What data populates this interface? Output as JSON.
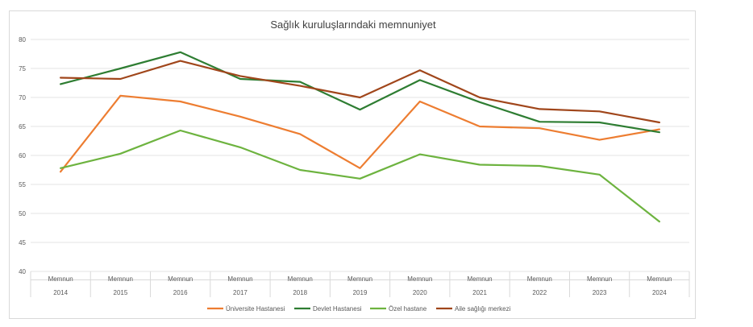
{
  "chart_data": {
    "type": "line",
    "title": "Sağlık kuruluşlarındaki memnuniyet",
    "categories": [
      {
        "top": "Memnun",
        "bottom": "2014"
      },
      {
        "top": "Memnun",
        "bottom": "2015"
      },
      {
        "top": "Memnun",
        "bottom": "2016"
      },
      {
        "top": "Memnun",
        "bottom": "2017"
      },
      {
        "top": "Memnun",
        "bottom": "2018"
      },
      {
        "top": "Memnun",
        "bottom": "2019"
      },
      {
        "top": "Memnun",
        "bottom": "2020"
      },
      {
        "top": "Memnun",
        "bottom": "2021"
      },
      {
        "top": "Memnun",
        "bottom": "2022"
      },
      {
        "top": "Memnun",
        "bottom": "2023"
      },
      {
        "top": "Memnun",
        "bottom": "2024"
      }
    ],
    "ylim": [
      40,
      80
    ],
    "yticks": [
      40,
      45,
      50,
      55,
      60,
      65,
      70,
      75,
      80
    ],
    "grid": true,
    "legend_position": "bottom",
    "series": [
      {
        "name": "Üniversite Hastanesi",
        "color": "#ED7D31",
        "values": [
          57.2,
          70.3,
          69.3,
          66.7,
          63.7,
          57.8,
          69.3,
          65.0,
          64.7,
          62.7,
          64.5
        ]
      },
      {
        "name": "Devlet Hastanesi",
        "color": "#2E7D32",
        "values": [
          72.3,
          75.0,
          77.8,
          73.2,
          72.7,
          67.9,
          73.0,
          69.2,
          65.8,
          65.7,
          64.0
        ]
      },
      {
        "name": "Özel hastane",
        "color": "#6DB33F",
        "values": [
          57.8,
          60.3,
          64.3,
          61.4,
          57.5,
          56.0,
          60.2,
          58.4,
          58.2,
          56.7,
          48.6
        ]
      },
      {
        "name": "Aile sağlığı merkezi",
        "color": "#A0461B",
        "values": [
          73.4,
          73.2,
          76.3,
          73.7,
          72.0,
          70.0,
          74.7,
          70.0,
          68.0,
          67.6,
          65.7
        ]
      }
    ]
  }
}
